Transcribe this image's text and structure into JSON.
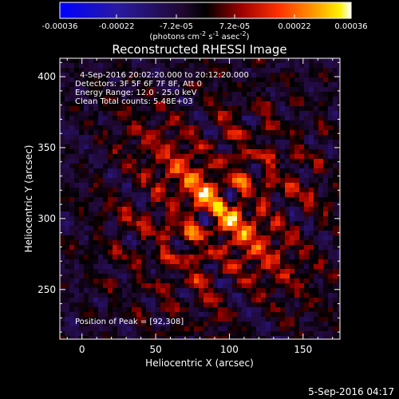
{
  "chart_data": {
    "type": "heatmap",
    "title": "Reconstructed RHESSI Image",
    "xlabel": "Heliocentric X (arcsec)",
    "ylabel": "Heliocentric Y (arcsec)",
    "xlim": [
      -15,
      175
    ],
    "ylim": [
      215,
      413
    ],
    "xticks": [
      0,
      50,
      100,
      150
    ],
    "yticks": [
      250,
      300,
      350,
      400
    ],
    "colorbar": {
      "range": [
        -0.00036,
        0.00036
      ],
      "ticks": [
        "-0.00036",
        "-0.00022",
        "-7.2e-05",
        "7.2e-05",
        "0.00022",
        "0.00036"
      ],
      "unit_prefix": "(photons cm",
      "unit_exp1": "-2",
      "unit_mid": " s",
      "unit_exp2": "-1",
      "unit_mid2": " asec",
      "unit_exp3": "-2",
      "unit_suffix": ")"
    },
    "annotations": {
      "time_range": "4-Sep-2016 20:02:20.000 to 20:12:20.000",
      "detectors": "Detectors: 3F 5F 6F 7F 8F, Att 0",
      "energy": "Energy Range: 12.0 - 25.0 keV",
      "clean": "Clean     Total counts: 5.48E+03",
      "peak": "Position of Peak = [92,308]"
    },
    "peak": [
      92,
      308
    ],
    "footer_date": "5-Sep-2016 04:17"
  }
}
